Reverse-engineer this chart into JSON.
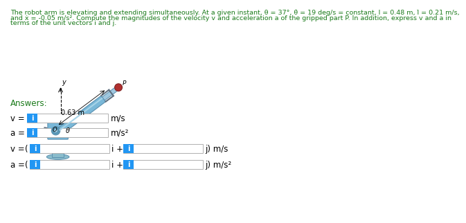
{
  "title_line1": "The robot arm is elevating and extending simultaneously. At a given instant, θ = 37°, θ̇ = 19 deg/s = constant, l = 0.48 m, l̇ = 0.21 m/s,",
  "title_line2": "and ẋ = -0.05 m/s². Compute the magnitudes of the velocity v and acceleration a of the gripped part P. In addition, express v and a in",
  "title_line3": "terms of the unit vectors i and j.",
  "answers_label": "Answers:",
  "row1_label": "v =",
  "row1_unit": "m/s",
  "row2_label": "a =",
  "row2_unit": "m/s²",
  "row3_label": "v =",
  "row3_prefix": "(",
  "row3_mid": "i +",
  "row3_end": "j) m/s",
  "row4_label": "a =",
  "row4_prefix": "(",
  "row4_mid": "i +",
  "row4_end": "j) m/s²",
  "box_color": "#2196F3",
  "box_text": "i",
  "box_text_color": "white",
  "input_box_color": "white",
  "input_box_edge": "#b0b0b0",
  "bg_color": "white",
  "title_color": "#1a7a1a",
  "label_color": "black",
  "image_label": "0.63 m",
  "arm_color": "#7ab8d8",
  "arm_edge": "#5a90b0",
  "body_color": "#7ab8d8",
  "gripper_color": "#b03030",
  "base_color": "#8abccc"
}
